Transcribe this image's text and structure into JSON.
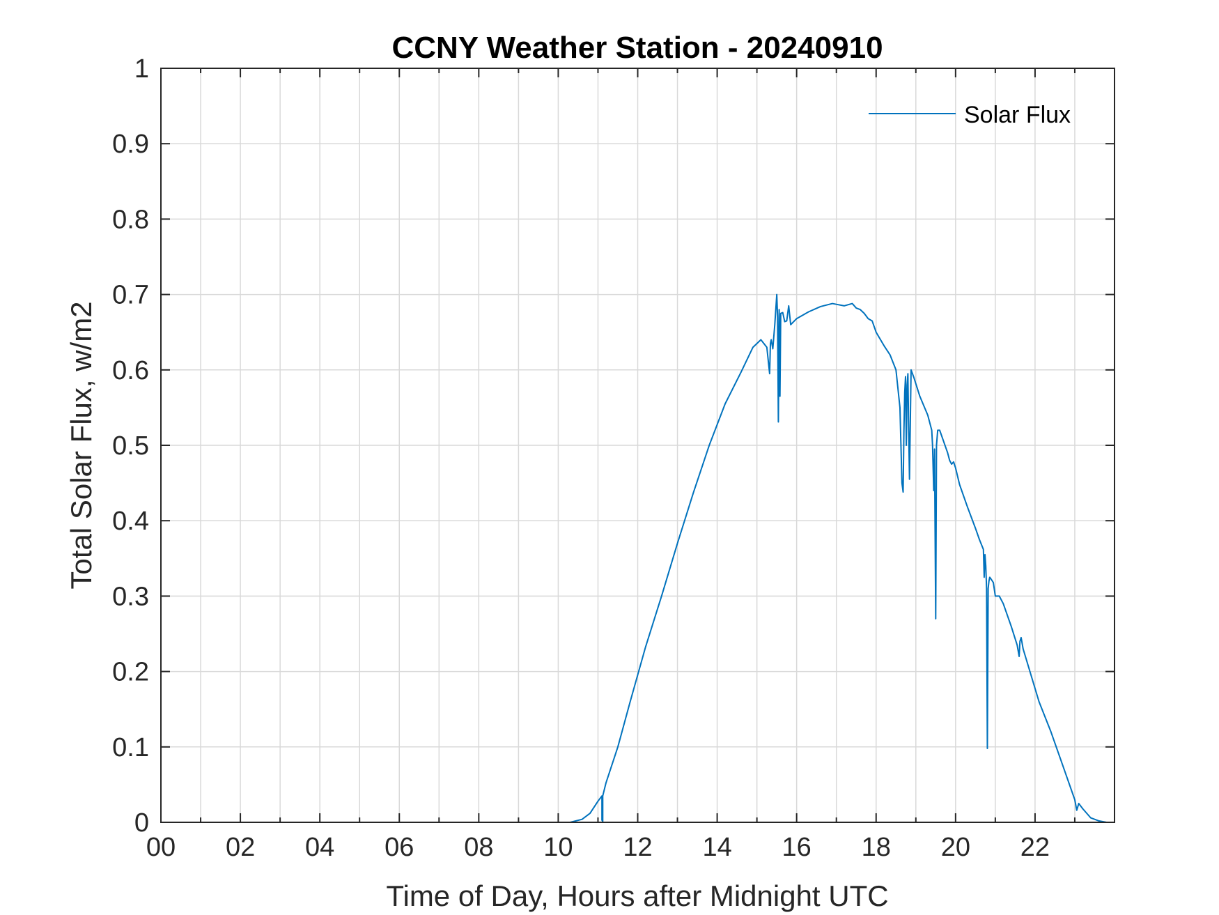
{
  "chart_data": {
    "type": "line",
    "title": "CCNY Weather Station - 20240910",
    "xlabel": "Time of Day, Hours after Midnight UTC",
    "ylabel": "Total Solar Flux, w/m2",
    "xlim": [
      0,
      24
    ],
    "ylim": [
      0,
      1
    ],
    "xticks": [
      0,
      2,
      4,
      6,
      8,
      10,
      12,
      14,
      16,
      18,
      20,
      22
    ],
    "xtick_labels": [
      "00",
      "02",
      "04",
      "06",
      "08",
      "10",
      "12",
      "14",
      "16",
      "18",
      "20",
      "22"
    ],
    "yticks": [
      0,
      0.1,
      0.2,
      0.3,
      0.4,
      0.5,
      0.6,
      0.7,
      0.8,
      0.9,
      1
    ],
    "ytick_labels": [
      "0",
      "0.1",
      "0.2",
      "0.3",
      "0.4",
      "0.5",
      "0.6",
      "0.7",
      "0.8",
      "0.9",
      "1"
    ],
    "grid": true,
    "minor_x_grid": true,
    "legend_position": "top-right",
    "series": [
      {
        "name": "Solar Flux",
        "color": "#0072BD",
        "x": [
          0,
          10.3,
          10.6,
          10.8,
          11.0,
          11.1,
          11.1,
          11.12,
          11.12,
          11.2,
          11.5,
          11.8,
          12.2,
          12.6,
          13.0,
          13.4,
          13.8,
          14.2,
          14.6,
          14.9,
          15.1,
          15.25,
          15.32,
          15.34,
          15.36,
          15.4,
          15.45,
          15.5,
          15.52,
          15.54,
          15.56,
          15.58,
          15.6,
          15.65,
          15.7,
          15.75,
          15.8,
          15.85,
          16.0,
          16.3,
          16.6,
          16.9,
          17.0,
          17.2,
          17.4,
          17.5,
          17.6,
          17.7,
          17.8,
          17.9,
          18.0,
          18.2,
          18.35,
          18.5,
          18.6,
          18.65,
          18.68,
          18.7,
          18.72,
          18.74,
          18.76,
          18.78,
          18.8,
          18.82,
          18.84,
          18.88,
          18.95,
          19.1,
          19.3,
          19.4,
          19.42,
          19.45,
          19.47,
          19.5,
          19.52,
          19.55,
          19.6,
          19.7,
          19.8,
          19.85,
          19.9,
          19.95,
          20.0,
          20.1,
          20.3,
          20.5,
          20.6,
          20.7,
          20.72,
          20.74,
          20.76,
          20.78,
          20.8,
          20.82,
          20.84,
          20.86,
          20.9,
          20.95,
          21.0,
          21.1,
          21.2,
          21.4,
          21.55,
          21.6,
          21.62,
          21.65,
          21.7,
          21.9,
          22.1,
          22.4,
          22.7,
          23.0,
          23.05,
          23.1,
          23.2,
          23.4,
          23.6,
          23.8,
          23.95
        ],
        "y": [
          0,
          0,
          0.004,
          0.012,
          0.028,
          0.035,
          0.003,
          0.001,
          0.035,
          0.052,
          0.1,
          0.158,
          0.233,
          0.3,
          0.37,
          0.437,
          0.5,
          0.555,
          0.597,
          0.63,
          0.64,
          0.63,
          0.595,
          0.635,
          0.64,
          0.628,
          0.66,
          0.7,
          0.67,
          0.531,
          0.68,
          0.565,
          0.675,
          0.676,
          0.664,
          0.665,
          0.685,
          0.66,
          0.668,
          0.677,
          0.684,
          0.688,
          0.687,
          0.685,
          0.688,
          0.682,
          0.68,
          0.675,
          0.668,
          0.665,
          0.65,
          0.632,
          0.62,
          0.6,
          0.55,
          0.45,
          0.438,
          0.52,
          0.57,
          0.591,
          0.5,
          0.58,
          0.595,
          0.52,
          0.455,
          0.6,
          0.59,
          0.565,
          0.54,
          0.52,
          0.5,
          0.44,
          0.495,
          0.27,
          0.5,
          0.52,
          0.52,
          0.505,
          0.49,
          0.48,
          0.475,
          0.478,
          0.47,
          0.448,
          0.418,
          0.39,
          0.375,
          0.362,
          0.325,
          0.355,
          0.34,
          0.31,
          0.098,
          0.31,
          0.32,
          0.325,
          0.322,
          0.318,
          0.3,
          0.3,
          0.29,
          0.26,
          0.235,
          0.22,
          0.24,
          0.245,
          0.23,
          0.195,
          0.16,
          0.12,
          0.075,
          0.03,
          0.016,
          0.025,
          0.018,
          0.006,
          0.002,
          0.0,
          0.0
        ]
      }
    ]
  }
}
